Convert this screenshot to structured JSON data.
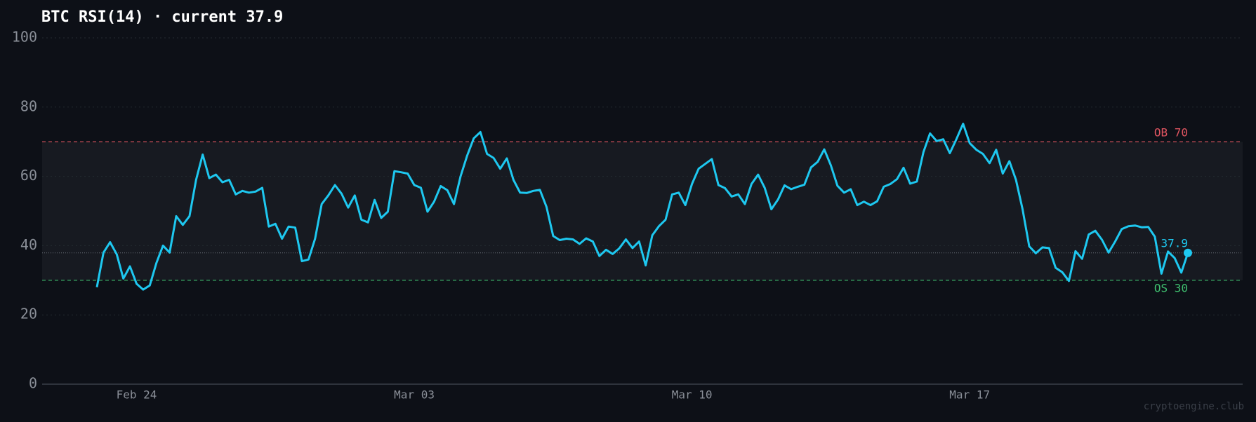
{
  "chart_data": {
    "type": "line",
    "title": "BTC RSI(14)  ·  current 37.9",
    "categories": [
      null,
      null,
      null,
      null,
      null,
      null,
      "Feb 24",
      null,
      null,
      null,
      null,
      null,
      null,
      null,
      null,
      null,
      null,
      null,
      null,
      null,
      null,
      null,
      null,
      null,
      null,
      null,
      null,
      null,
      null,
      null,
      null,
      null,
      null,
      null,
      null,
      null,
      null,
      null,
      null,
      null,
      null,
      null,
      null,
      null,
      null,
      null,
      null,
      null,
      "Mar 03",
      null,
      null,
      null,
      null,
      null,
      null,
      null,
      null,
      null,
      null,
      null,
      null,
      null,
      null,
      null,
      null,
      null,
      null,
      null,
      null,
      null,
      null,
      null,
      null,
      null,
      null,
      null,
      null,
      null,
      null,
      null,
      null,
      null,
      null,
      null,
      null,
      null,
      null,
      null,
      null,
      null,
      "Mar 10",
      null,
      null,
      null,
      null,
      null,
      null,
      null,
      null,
      null,
      null,
      null,
      null,
      null,
      null,
      null,
      null,
      null,
      null,
      null,
      null,
      null,
      null,
      null,
      null,
      null,
      null,
      null,
      null,
      null,
      null,
      null,
      null,
      null,
      null,
      null,
      null,
      null,
      null,
      null,
      null,
      null,
      "Mar 17",
      null,
      null,
      null,
      null,
      null,
      null,
      null,
      null,
      null,
      null,
      null,
      null,
      null,
      null,
      null,
      null,
      null,
      null,
      null,
      null,
      null,
      null,
      null,
      null,
      null,
      null,
      null,
      null,
      null,
      null,
      null,
      null,
      null
    ],
    "series": [
      {
        "color": "#1ec8f0",
        "values": [
          28,
          38,
          41,
          37.5,
          30.5,
          34,
          29,
          27.3,
          28.5,
          35,
          40,
          38,
          48.5,
          46,
          48.5,
          59,
          66.3,
          59.5,
          60.5,
          58.3,
          59,
          54.8,
          55.8,
          55.3,
          55.6,
          56.7,
          45.5,
          46.3,
          42,
          45.5,
          45.2,
          35.5,
          36,
          42,
          52,
          54.5,
          57.5,
          55,
          51,
          54.5,
          47.5,
          46.7,
          53.2,
          48,
          49.8,
          61.5,
          61.2,
          60.8,
          57.5,
          56.7,
          49.8,
          52.7,
          57.2,
          56,
          52,
          60,
          66,
          71,
          72.8,
          66.5,
          65.3,
          62.2,
          65.2,
          59,
          55.3,
          55.2,
          55.8,
          56.1,
          51.2,
          42.8,
          41.6,
          42,
          41.8,
          40.5,
          42.1,
          41.2,
          37,
          38.8,
          37.6,
          39.2,
          41.8,
          39.3,
          41.2,
          34.3,
          43,
          45.6,
          47.5,
          54.8,
          55.3,
          51.7,
          57.8,
          62.2,
          63.6,
          65,
          57.5,
          56.6,
          54.2,
          54.8,
          52,
          57.8,
          60.5,
          56.7,
          50.5,
          53.3,
          57.4,
          56.3,
          57,
          57.6,
          62.6,
          64.2,
          67.8,
          63.2,
          57.3,
          55.3,
          56.3,
          51.7,
          52.7,
          51.7,
          52.8,
          57,
          57.8,
          59.2,
          62.5,
          57.9,
          58.5,
          67,
          72.4,
          70.2,
          70.7,
          66.7,
          70.8,
          75.2,
          69.6,
          67.7,
          66.5,
          63.8,
          67.7,
          60.8,
          64.4,
          59,
          50.5,
          39.8,
          37.8,
          39.5,
          39.3,
          33.6,
          32.3,
          29.8,
          38.4,
          36.2,
          43.2,
          44.3,
          41.7,
          38,
          41.2,
          44.8,
          45.6,
          45.8,
          45.3,
          45.4,
          42.6,
          31.9,
          38.3,
          36.4,
          32.2,
          37.9
        ]
      }
    ],
    "ylim": [
      0,
      100
    ],
    "yticks": [
      0,
      20,
      40,
      60,
      80,
      100
    ],
    "grid": true,
    "reference_lines": [
      {
        "value": 70,
        "label": "OB 70",
        "color": "#e05561"
      },
      {
        "value": 30,
        "label": "OS 30",
        "color": "#3fbf6f"
      }
    ],
    "current": {
      "value": 37.9,
      "label": "37.9"
    },
    "watermark": "cryptoengine.club"
  }
}
